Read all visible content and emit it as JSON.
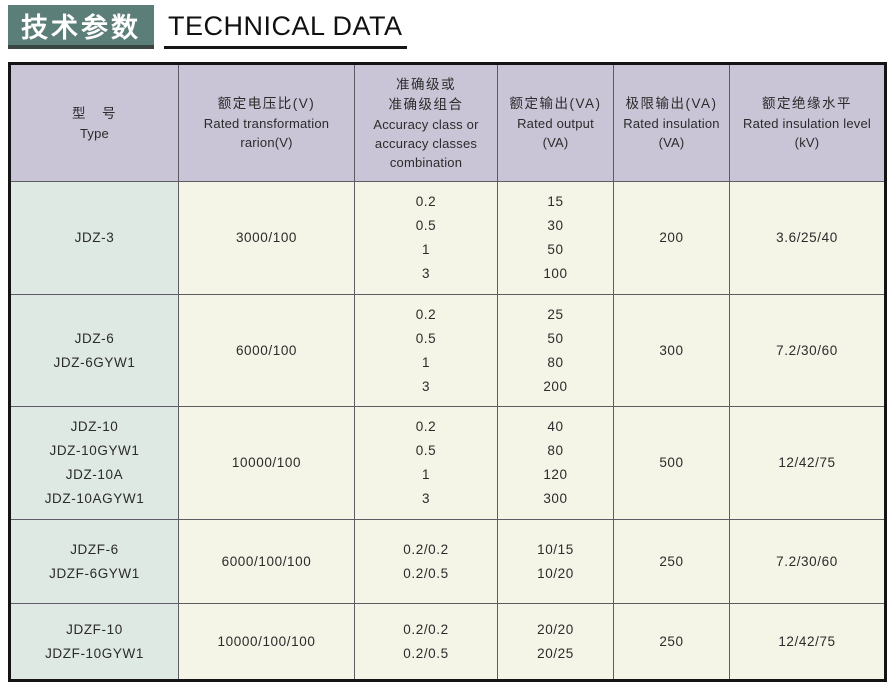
{
  "header": {
    "title_zh": "技术参数",
    "title_en": "TECHNICAL DATA"
  },
  "colors": {
    "title_green": "#5c7e79",
    "title_shadow": "#3a4441",
    "header_bg": "#c9c5d6",
    "type_col_bg": "#dfe9e4",
    "cell_bg": "#f4f4e7",
    "grid_line": "#5d5c64",
    "outer_border": "#141414",
    "text": "#2b2b2b"
  },
  "table": {
    "columns": [
      {
        "id": "type",
        "zh_lines": [
          "型　号"
        ],
        "en_lines": [
          "Type"
        ]
      },
      {
        "id": "rated-voltage-ratio",
        "zh_lines": [
          "额定电压比(V)"
        ],
        "en_lines": [
          "Rated transformation",
          "rarion(V)"
        ]
      },
      {
        "id": "accuracy-class",
        "zh_lines": [
          "准确级或",
          "准确级组合"
        ],
        "en_lines": [
          "Accuracy class or",
          "accuracy classes",
          "combination"
        ]
      },
      {
        "id": "rated-output",
        "zh_lines": [
          "额定输出(VA)"
        ],
        "en_lines": [
          "Rated output",
          "(VA)"
        ]
      },
      {
        "id": "limit-output",
        "zh_lines": [
          "极限输出(VA)"
        ],
        "en_lines": [
          "Rated insulation",
          "(VA)"
        ]
      },
      {
        "id": "insulation-level",
        "zh_lines": [
          "额定绝缘水平"
        ],
        "en_lines": [
          "Rated insulation level",
          "(kV)"
        ]
      }
    ],
    "rows": [
      {
        "cells": [
          [
            "JDZ-3"
          ],
          [
            "3000/100"
          ],
          [
            "0.2",
            "0.5",
            "1",
            "3"
          ],
          [
            "15",
            "30",
            "50",
            "100"
          ],
          [
            "200"
          ],
          [
            "3.6/25/40"
          ]
        ]
      },
      {
        "cells": [
          [
            "JDZ-6",
            "JDZ-6GYW1"
          ],
          [
            "6000/100"
          ],
          [
            "0.2",
            "0.5",
            "1",
            "3"
          ],
          [
            "25",
            "50",
            "80",
            "200"
          ],
          [
            "300"
          ],
          [
            "7.2/30/60"
          ]
        ]
      },
      {
        "cells": [
          [
            "JDZ-10",
            "JDZ-10GYW1",
            "JDZ-10A",
            "JDZ-10AGYW1"
          ],
          [
            "10000/100"
          ],
          [
            "0.2",
            "0.5",
            "1",
            "3"
          ],
          [
            "40",
            "80",
            "120",
            "300"
          ],
          [
            "500"
          ],
          [
            "12/42/75"
          ]
        ]
      },
      {
        "cells": [
          [
            "JDZF-6",
            "JDZF-6GYW1"
          ],
          [
            "6000/100/100"
          ],
          [
            "0.2/0.2",
            "0.2/0.5"
          ],
          [
            "10/15",
            "10/20"
          ],
          [
            "250"
          ],
          [
            "7.2/30/60"
          ]
        ]
      },
      {
        "cells": [
          [
            "JDZF-10",
            "JDZF-10GYW1"
          ],
          [
            "10000/100/100"
          ],
          [
            "0.2/0.2",
            "0.2/0.5"
          ],
          [
            "20/20",
            "20/25"
          ],
          [
            "250"
          ],
          [
            "12/42/75"
          ]
        ]
      }
    ]
  }
}
